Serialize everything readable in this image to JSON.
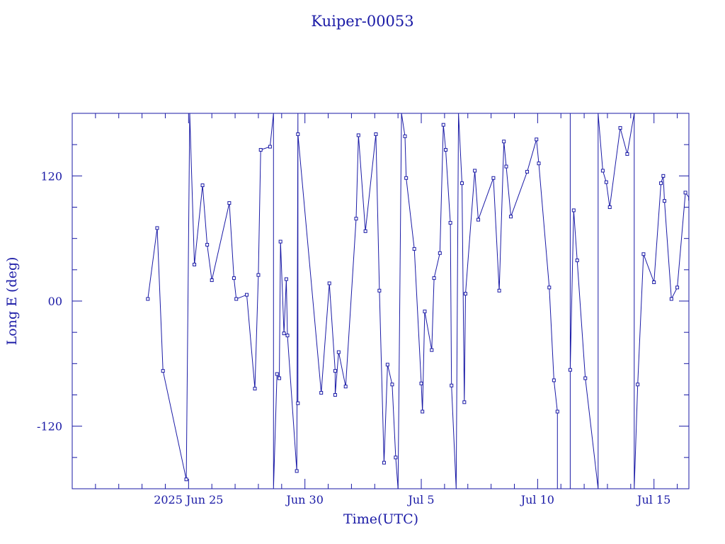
{
  "chart_data": {
    "type": "line",
    "title": "Kuiper-00053",
    "xlabel": "Time(UTC)",
    "ylabel": "Long E (deg)",
    "x_range_days_from_jun20": [
      0,
      26.5
    ],
    "ylim": [
      -180,
      180
    ],
    "x_tick_labels": [
      {
        "label": "2025 Jun 25",
        "day": 5
      },
      {
        "label": "Jun 30",
        "day": 10
      },
      {
        "label": "Jul  5",
        "day": 15
      },
      {
        "label": "Jul 10",
        "day": 20
      },
      {
        "label": "Jul 15",
        "day": 25
      }
    ],
    "y_tick_labels": [
      {
        "label": "120",
        "value": 120
      },
      {
        "label": "00",
        "value": 0
      },
      {
        "label": "-120",
        "value": -120
      }
    ],
    "color": "#1a1aa6",
    "series": [
      {
        "points": [
          [
            3.25,
            2
          ],
          [
            3.65,
            70
          ],
          [
            3.9,
            -67
          ],
          [
            4.9,
            -171
          ],
          [
            5.05,
            180
          ],
          [
            5.25,
            35
          ],
          [
            5.6,
            111
          ],
          [
            5.8,
            54
          ],
          [
            6.0,
            20
          ],
          [
            6.75,
            94
          ],
          [
            6.95,
            22
          ],
          [
            7.05,
            2
          ],
          [
            7.5,
            6
          ],
          [
            7.85,
            -84
          ],
          [
            8.0,
            25
          ],
          [
            8.1,
            145
          ],
          [
            8.5,
            148
          ],
          [
            8.65,
            180
          ],
          [
            8.65,
            -180
          ],
          [
            8.8,
            -70
          ],
          [
            8.9,
            -74
          ],
          [
            8.95,
            57
          ],
          [
            9.1,
            -31
          ],
          [
            9.2,
            21
          ],
          [
            9.25,
            -33
          ],
          [
            9.65,
            -163
          ],
          [
            9.7,
            180
          ],
          [
            9.7,
            -98
          ],
          [
            9.7,
            160
          ],
          [
            10.7,
            -88
          ],
          [
            11.05,
            17
          ],
          [
            11.3,
            -67
          ],
          [
            11.3,
            -90
          ],
          [
            11.45,
            -49
          ],
          [
            11.75,
            -82
          ],
          [
            12.2,
            79
          ],
          [
            12.3,
            159
          ],
          [
            12.6,
            67
          ],
          [
            13.05,
            160
          ],
          [
            13.2,
            10
          ],
          [
            13.4,
            -155
          ],
          [
            13.55,
            -61
          ],
          [
            13.75,
            -80
          ],
          [
            13.9,
            -150
          ],
          [
            14.0,
            -180
          ],
          [
            14.15,
            180
          ],
          [
            14.3,
            158
          ],
          [
            14.35,
            118
          ],
          [
            14.7,
            50
          ],
          [
            15.0,
            -79
          ],
          [
            15.05,
            -106
          ],
          [
            15.15,
            -10
          ],
          [
            15.45,
            -47
          ],
          [
            15.55,
            22
          ],
          [
            15.8,
            46
          ],
          [
            15.95,
            169
          ],
          [
            16.05,
            145
          ],
          [
            16.25,
            75
          ],
          [
            16.3,
            -81
          ],
          [
            16.5,
            -180
          ],
          [
            16.6,
            180
          ],
          [
            16.75,
            113
          ],
          [
            16.85,
            -97
          ],
          [
            16.9,
            7
          ],
          [
            17.3,
            125
          ],
          [
            17.45,
            78
          ],
          [
            18.1,
            118
          ],
          [
            18.35,
            10
          ],
          [
            18.55,
            153
          ],
          [
            18.65,
            129
          ],
          [
            18.85,
            81
          ],
          [
            19.55,
            124
          ],
          [
            19.95,
            155
          ],
          [
            20.05,
            132
          ],
          [
            20.5,
            13
          ],
          [
            20.7,
            -76
          ],
          [
            20.85,
            -106
          ],
          [
            20.85,
            -180
          ],
          [
            21.4,
            -180
          ],
          [
            21.4,
            180
          ],
          [
            21.4,
            -66
          ],
          [
            21.55,
            87
          ],
          [
            21.7,
            39
          ],
          [
            22.05,
            -74
          ],
          [
            22.6,
            -180
          ],
          [
            22.6,
            180
          ],
          [
            22.8,
            125
          ],
          [
            22.95,
            114
          ],
          [
            23.1,
            90
          ],
          [
            23.55,
            166
          ],
          [
            23.85,
            141
          ],
          [
            24.15,
            180
          ],
          [
            24.15,
            -180
          ],
          [
            24.3,
            -80
          ],
          [
            24.55,
            45
          ],
          [
            25.0,
            18
          ],
          [
            25.3,
            113
          ],
          [
            25.4,
            120
          ],
          [
            25.45,
            96
          ],
          [
            25.75,
            2
          ],
          [
            26.0,
            13
          ],
          [
            26.35,
            104
          ],
          [
            26.55,
            98
          ],
          [
            26.65,
            52
          ],
          [
            26.8,
            29
          ],
          [
            27.1,
            66
          ],
          [
            27.4,
            112
          ]
        ]
      }
    ]
  }
}
